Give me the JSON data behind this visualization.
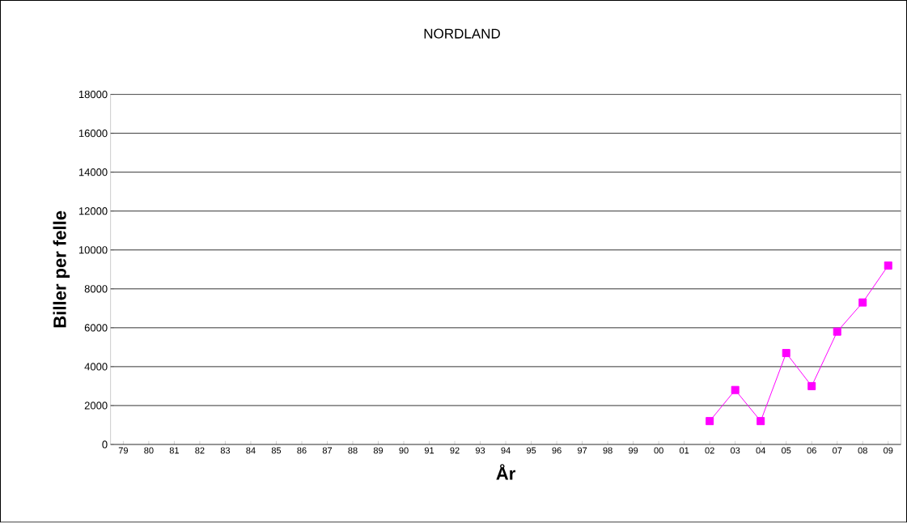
{
  "chart_data": {
    "type": "line",
    "title": "NORDLAND",
    "xlabel": "År",
    "ylabel": "Biller per felle",
    "categories": [
      "79",
      "80",
      "81",
      "82",
      "83",
      "84",
      "85",
      "86",
      "87",
      "88",
      "89",
      "90",
      "91",
      "92",
      "93",
      "94",
      "95",
      "96",
      "97",
      "98",
      "99",
      "00",
      "01",
      "02",
      "03",
      "04",
      "05",
      "06",
      "07",
      "08",
      "09"
    ],
    "series": [
      {
        "color": "#ff00ff",
        "values": [
          null,
          null,
          null,
          null,
          null,
          null,
          null,
          null,
          null,
          null,
          null,
          null,
          null,
          null,
          null,
          null,
          null,
          null,
          null,
          null,
          null,
          null,
          null,
          1200,
          2800,
          1200,
          4700,
          3000,
          5800,
          7300,
          9200
        ]
      }
    ],
    "ylim": [
      0,
      18000
    ],
    "yticks": [
      0,
      2000,
      4000,
      6000,
      8000,
      10000,
      12000,
      14000,
      16000,
      18000
    ],
    "grid": "y",
    "marker": "square",
    "line_style": "solid"
  }
}
